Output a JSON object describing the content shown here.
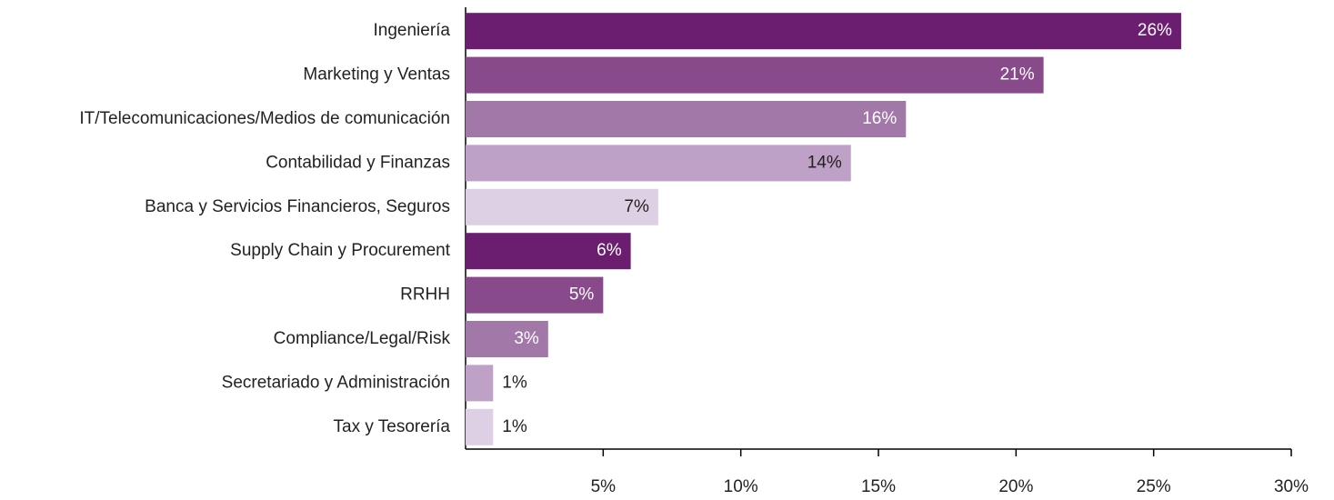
{
  "chart_data": {
    "type": "barh",
    "categories": [
      "Ingeniería",
      "Marketing y Ventas",
      "IT/Telecomunicaciones/Medios de comunicación",
      "Contabilidad y Finanzas",
      "Banca y Servicios Financieros, Seguros",
      "Supply Chain y Procurement",
      "RRHH",
      "Compliance/Legal/Risk",
      "Secretariado y Administración",
      "Tax y Tesorería"
    ],
    "values": [
      26,
      21,
      16,
      14,
      7,
      6,
      5,
      3,
      1,
      1
    ],
    "value_labels": [
      "26%",
      "21%",
      "16%",
      "14%",
      "7%",
      "6%",
      "5%",
      "3%",
      "1%",
      "1%"
    ],
    "colors": [
      "#6b1d6f",
      "#894a8c",
      "#a278a8",
      "#bfa0c6",
      "#ddd0e4",
      "#6b1d6f",
      "#894a8c",
      "#a278a8",
      "#bfa0c6",
      "#ddd0e4"
    ],
    "xlim": [
      0,
      30
    ],
    "xticks": [
      {
        "value": 5,
        "label": "5%"
      },
      {
        "value": 10,
        "label": "10%"
      },
      {
        "value": 15,
        "label": "15%"
      },
      {
        "value": 20,
        "label": "20%"
      },
      {
        "value": 25,
        "label": "25%"
      },
      {
        "value": 30,
        "label": "30%"
      }
    ]
  }
}
